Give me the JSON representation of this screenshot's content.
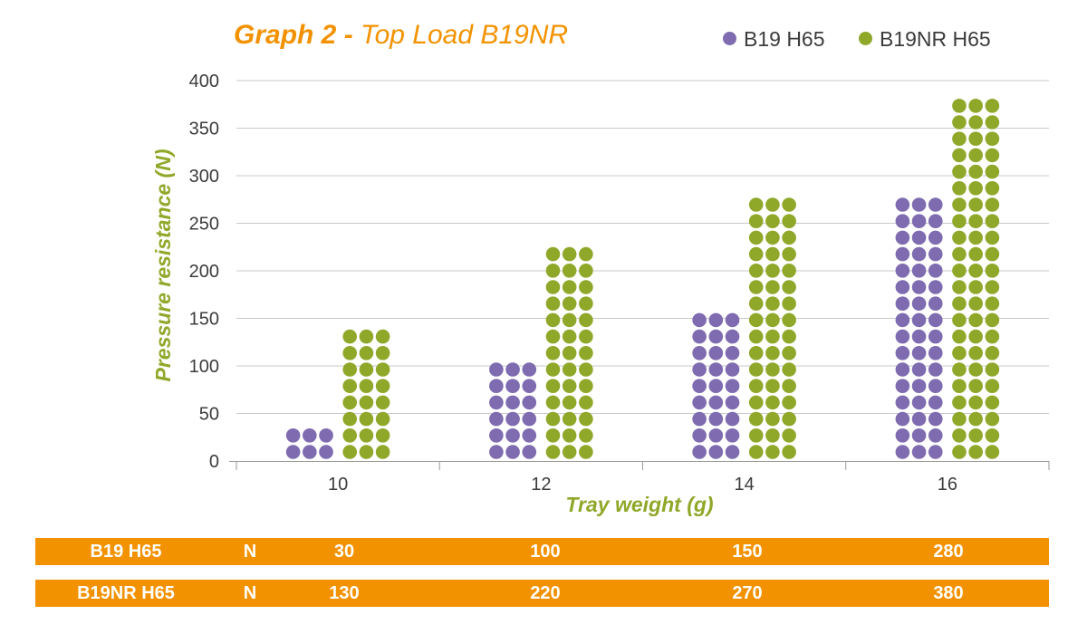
{
  "chart_data": {
    "type": "bar",
    "title_part1": "Graph 2 - ",
    "title_part2": "Top Load B19NR",
    "xlabel": "Tray weight (g)",
    "ylabel": "Pressure resistance (N)",
    "ylim": [
      0,
      400
    ],
    "yticks": [
      "0",
      "50",
      "100",
      "150",
      "200",
      "250",
      "300",
      "350",
      "400"
    ],
    "categories": [
      "10",
      "12",
      "14",
      "16"
    ],
    "series": [
      {
        "name": "B19 H65",
        "color": "#7e6bb0",
        "values": [
          30,
          100,
          150,
          280
        ]
      },
      {
        "name": "B19NR H65",
        "color": "#8fa829",
        "values": [
          130,
          220,
          270,
          380
        ]
      }
    ],
    "grid": true,
    "legend_position": "top-right"
  },
  "table": {
    "rows": [
      {
        "label": "B19 H65",
        "unit": "N",
        "values": [
          "30",
          "100",
          "150",
          "280"
        ]
      },
      {
        "label": "B19NR H65",
        "unit": "N",
        "values": [
          "130",
          "220",
          "270",
          "380"
        ]
      }
    ]
  }
}
